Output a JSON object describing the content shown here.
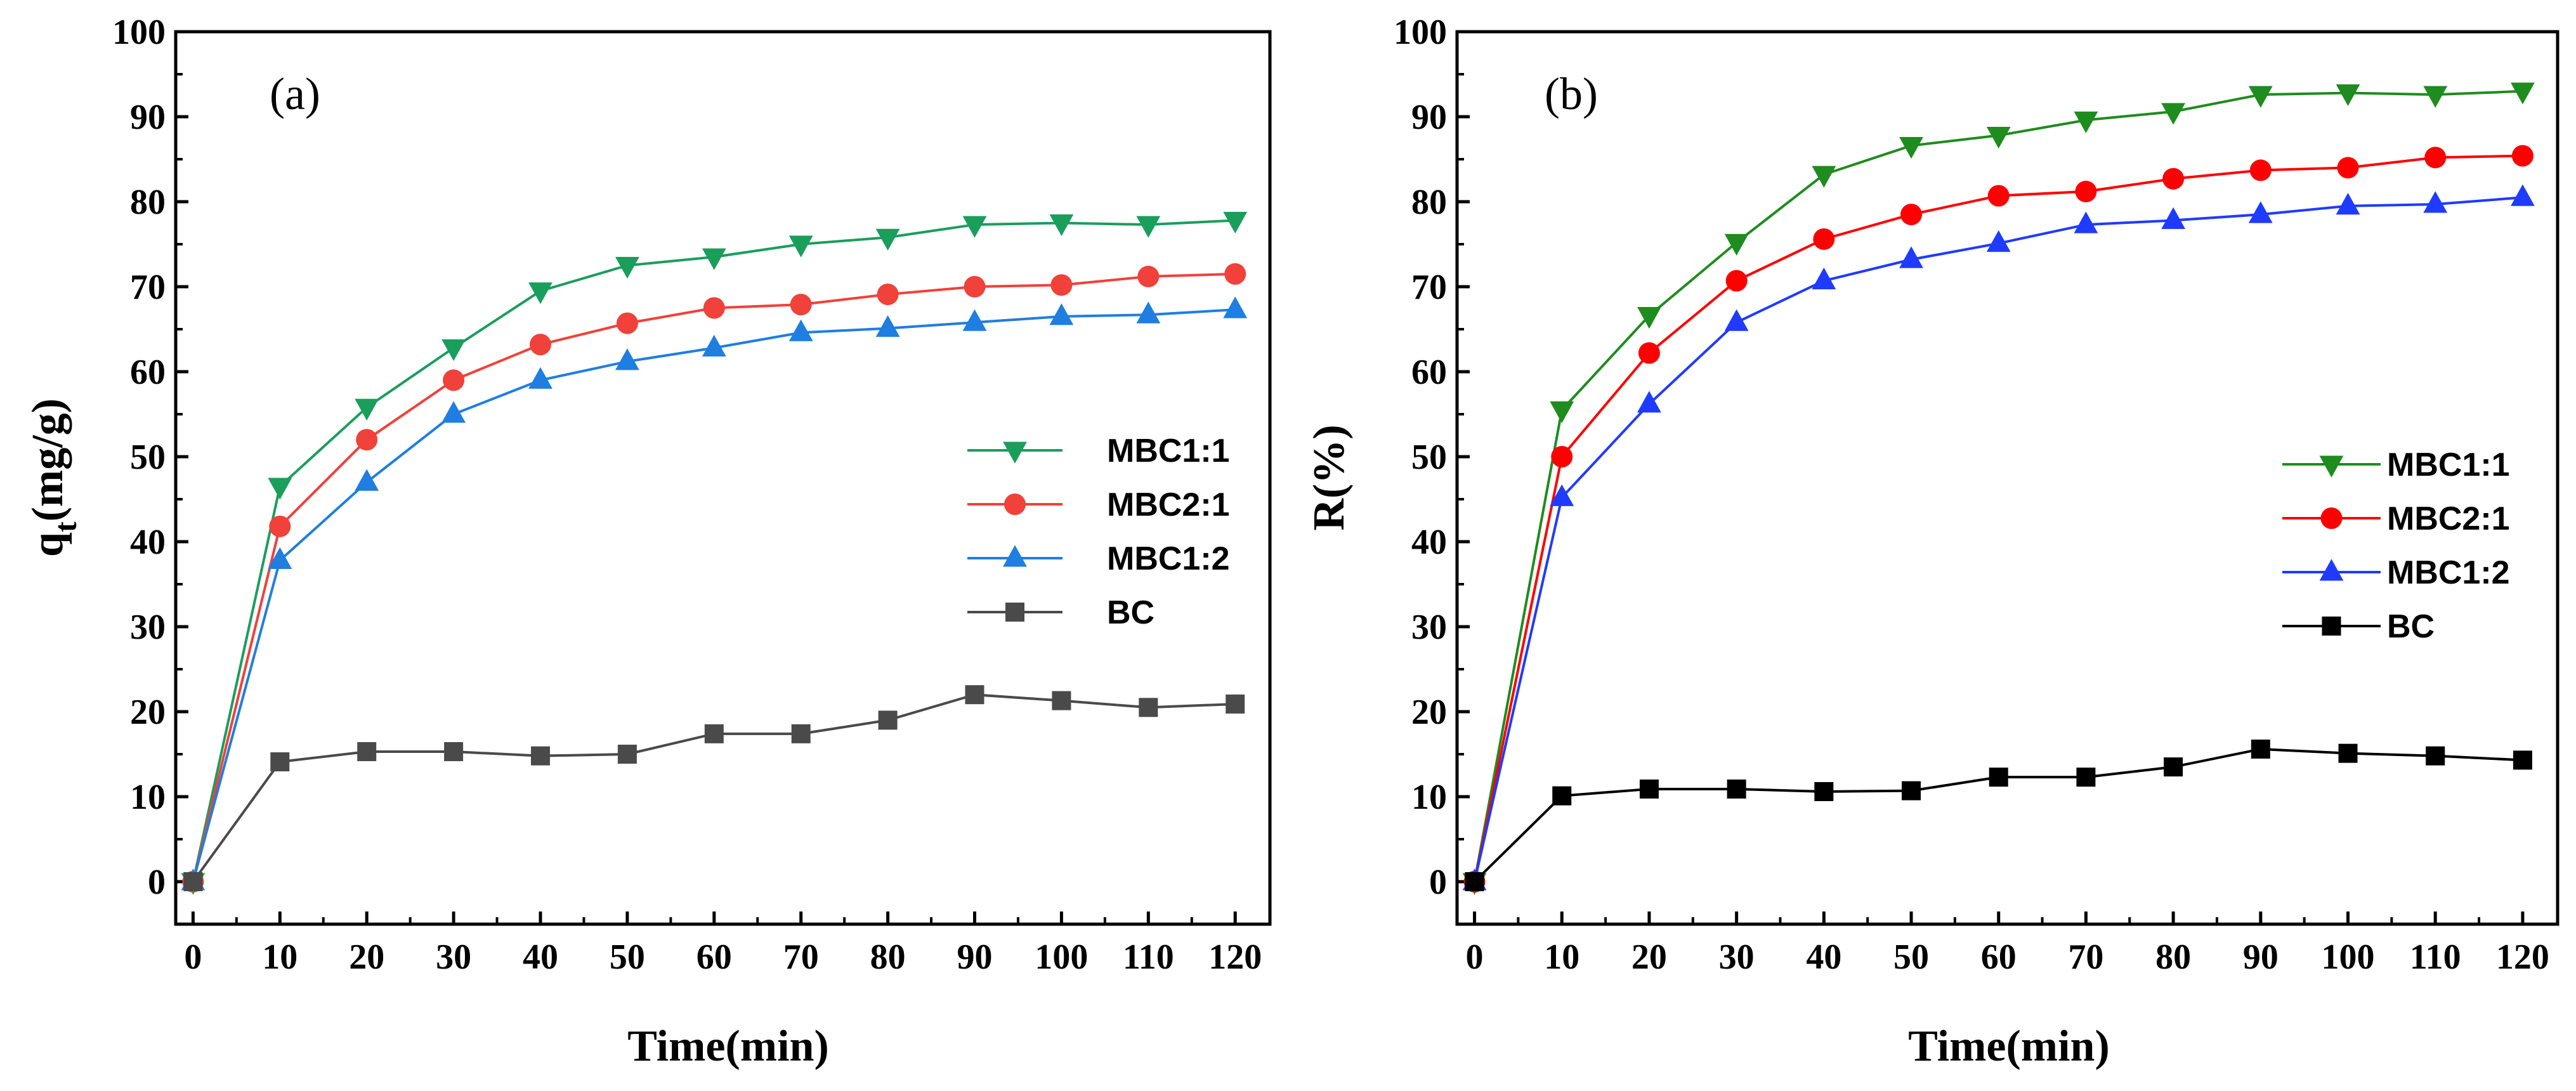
{
  "chart_data": [
    {
      "type": "line",
      "panel_label": "(a)",
      "xlabel": "Time(min)",
      "ylabel_main": "q",
      "ylabel_sub": "t",
      "ylabel_rest": "(mg/g)",
      "xlim": [
        -2,
        124
      ],
      "ylim": [
        -5,
        100
      ],
      "xticks": [
        0,
        10,
        20,
        30,
        40,
        50,
        60,
        70,
        80,
        90,
        100,
        110,
        120
      ],
      "yticks": [
        0,
        10,
        20,
        30,
        40,
        50,
        60,
        70,
        80,
        90,
        100
      ],
      "legend_position": "center-right",
      "x": [
        0,
        10,
        20,
        30,
        40,
        50,
        60,
        70,
        80,
        90,
        100,
        110,
        120
      ],
      "series": [
        {
          "name": "MBC1:1",
          "marker": "triangle-down",
          "color": "#1a9e5c",
          "values": [
            0,
            46.5,
            55.8,
            62.8,
            69.5,
            72.5,
            73.5,
            75,
            75.8,
            77.3,
            77.5,
            77.3,
            77.8
          ]
        },
        {
          "name": "MBC2:1",
          "marker": "circle",
          "color": "#f0413a",
          "values": [
            0,
            41.8,
            52,
            59,
            63.2,
            65.7,
            67.5,
            67.9,
            69.1,
            70,
            70.2,
            71.2,
            71.5
          ]
        },
        {
          "name": "MBC1:2",
          "marker": "triangle-up",
          "color": "#1f7ee0",
          "values": [
            0,
            37.8,
            47,
            55,
            59,
            61.2,
            62.8,
            64.6,
            65.1,
            65.8,
            66.5,
            66.7,
            67.3
          ]
        },
        {
          "name": "BC",
          "marker": "square",
          "color": "#4a4a4a",
          "values": [
            0,
            14.1,
            15.3,
            15.3,
            14.8,
            15,
            17.4,
            17.4,
            19,
            22,
            21.3,
            20.5,
            20.9
          ]
        }
      ]
    },
    {
      "type": "line",
      "panel_label": "(b)",
      "xlabel": "Time(min)",
      "ylabel_main": "R(%)",
      "xlim": [
        -2,
        124
      ],
      "ylim": [
        -5,
        100
      ],
      "xticks": [
        0,
        10,
        20,
        30,
        40,
        50,
        60,
        70,
        80,
        90,
        100,
        110,
        120
      ],
      "yticks": [
        0,
        10,
        20,
        30,
        40,
        50,
        60,
        70,
        80,
        90,
        100
      ],
      "legend_position": "center-right",
      "x": [
        0,
        10,
        20,
        30,
        40,
        50,
        60,
        70,
        80,
        90,
        100,
        110,
        120
      ],
      "series": [
        {
          "name": "MBC1:1",
          "marker": "triangle-down",
          "color": "#1e8c1e",
          "values": [
            0,
            55.5,
            66.6,
            75.2,
            83.2,
            86.6,
            87.8,
            89.6,
            90.6,
            92.6,
            92.8,
            92.6,
            93
          ]
        },
        {
          "name": "MBC2:1",
          "marker": "circle",
          "color": "#ff0000",
          "values": [
            0,
            50,
            62.2,
            70.7,
            75.6,
            78.5,
            80.7,
            81.2,
            82.7,
            83.7,
            84,
            85.2,
            85.4
          ]
        },
        {
          "name": "MBC1:2",
          "marker": "triangle-up",
          "color": "#1f3bff",
          "values": [
            0,
            45.2,
            56.2,
            65.8,
            70.7,
            73.2,
            75.1,
            77.3,
            77.8,
            78.5,
            79.5,
            79.7,
            80.5
          ]
        },
        {
          "name": "BC",
          "marker": "square",
          "color": "#000000",
          "values": [
            0,
            10.1,
            10.9,
            10.9,
            10.6,
            10.7,
            12.3,
            12.3,
            13.5,
            15.6,
            15.1,
            14.8,
            14.3
          ]
        }
      ]
    }
  ]
}
